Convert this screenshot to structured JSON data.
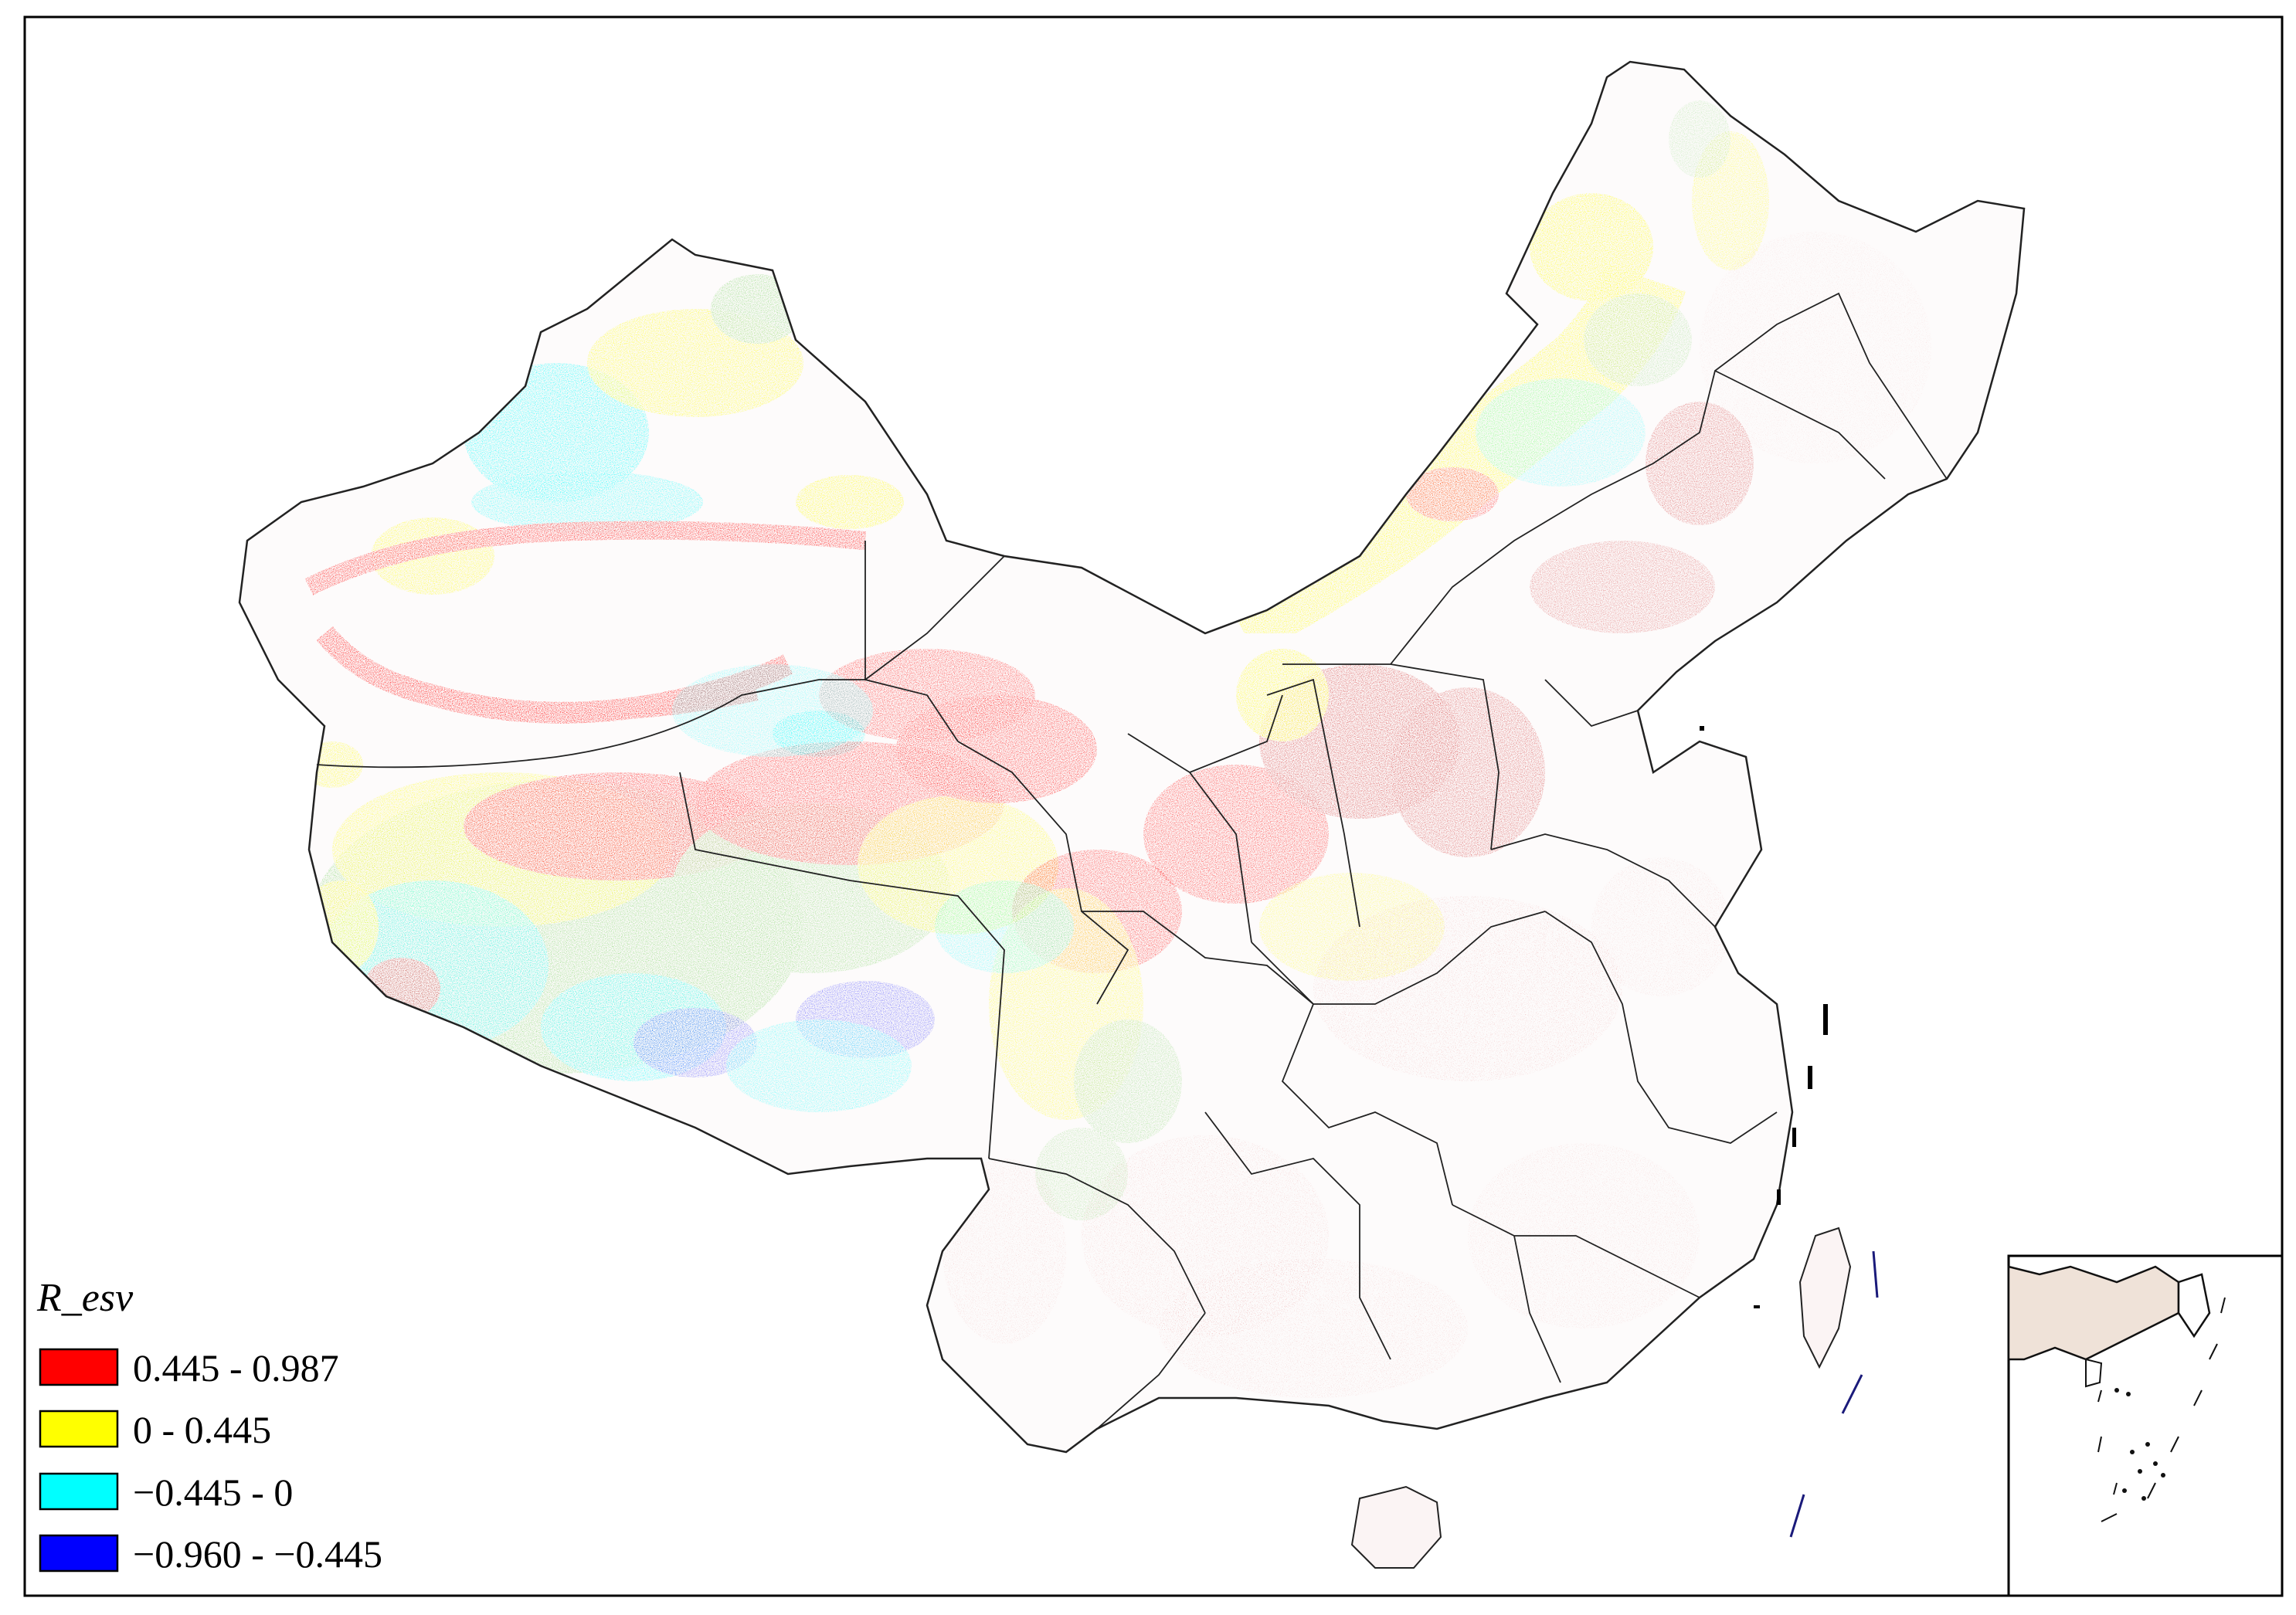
{
  "map": {
    "colors": {
      "class_high": "#ff0000",
      "class_mid_high": "#ffff00",
      "class_mid_low": "#00ffff",
      "class_low": "#0000ff",
      "grass_green": "#8fd97a",
      "speckle_red": "#d23a3a",
      "boundary": "#222222",
      "frame": "#000000"
    }
  },
  "legend": {
    "title": "R_esv",
    "items": [
      {
        "label": "0.445 - 0.987",
        "color": "#ff0000"
      },
      {
        "label": "0 - 0.445",
        "color": "#ffff00"
      },
      {
        "label": "−0.445 - 0",
        "color": "#00ffff"
      },
      {
        "label": "−0.960 - −0.445",
        "color": "#0000ff"
      }
    ]
  },
  "inset": {
    "description_icon": "south-china-sea-inset"
  }
}
